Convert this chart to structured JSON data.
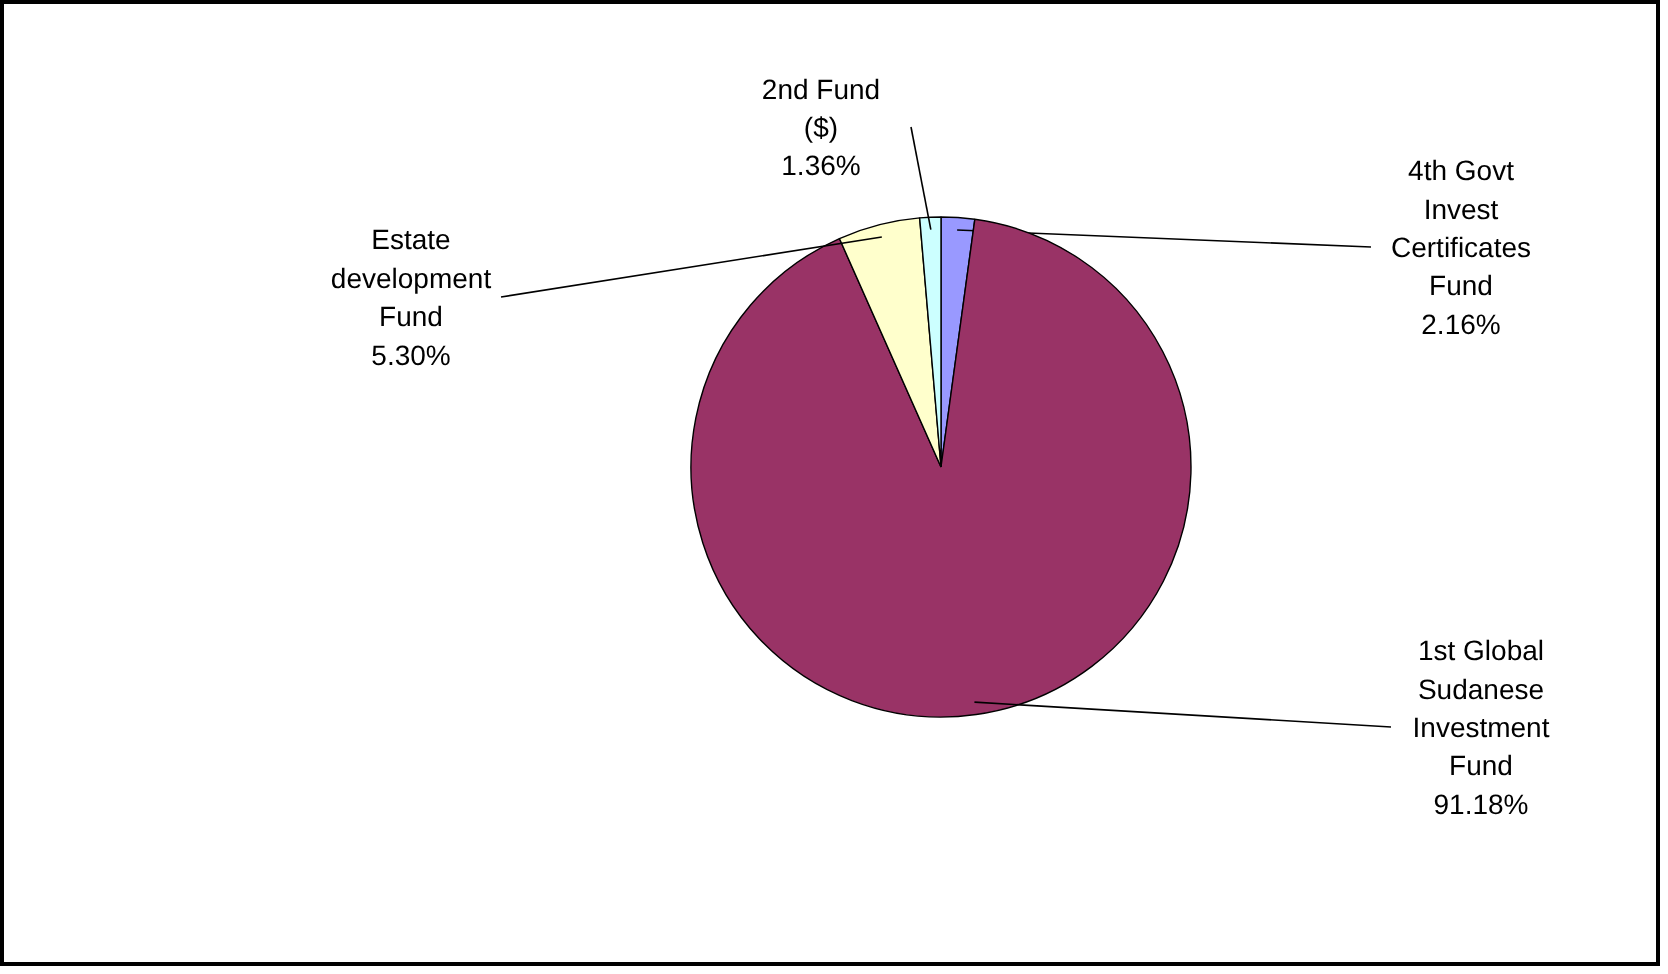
{
  "chart_data": {
    "type": "pie",
    "categories": [
      "4th Govt Invest Certificates Fund",
      "1st Global Sudanese Investment Fund",
      "Estate development Fund",
      "2nd Fund ($)"
    ],
    "values": [
      2.16,
      91.18,
      5.3,
      1.36
    ],
    "value_labels": [
      "2.16%",
      "91.18%",
      "5.30%",
      "1.36%"
    ],
    "colors": [
      "#9999ff",
      "#993366",
      "#ffffcc",
      "#ccffff"
    ]
  }
}
